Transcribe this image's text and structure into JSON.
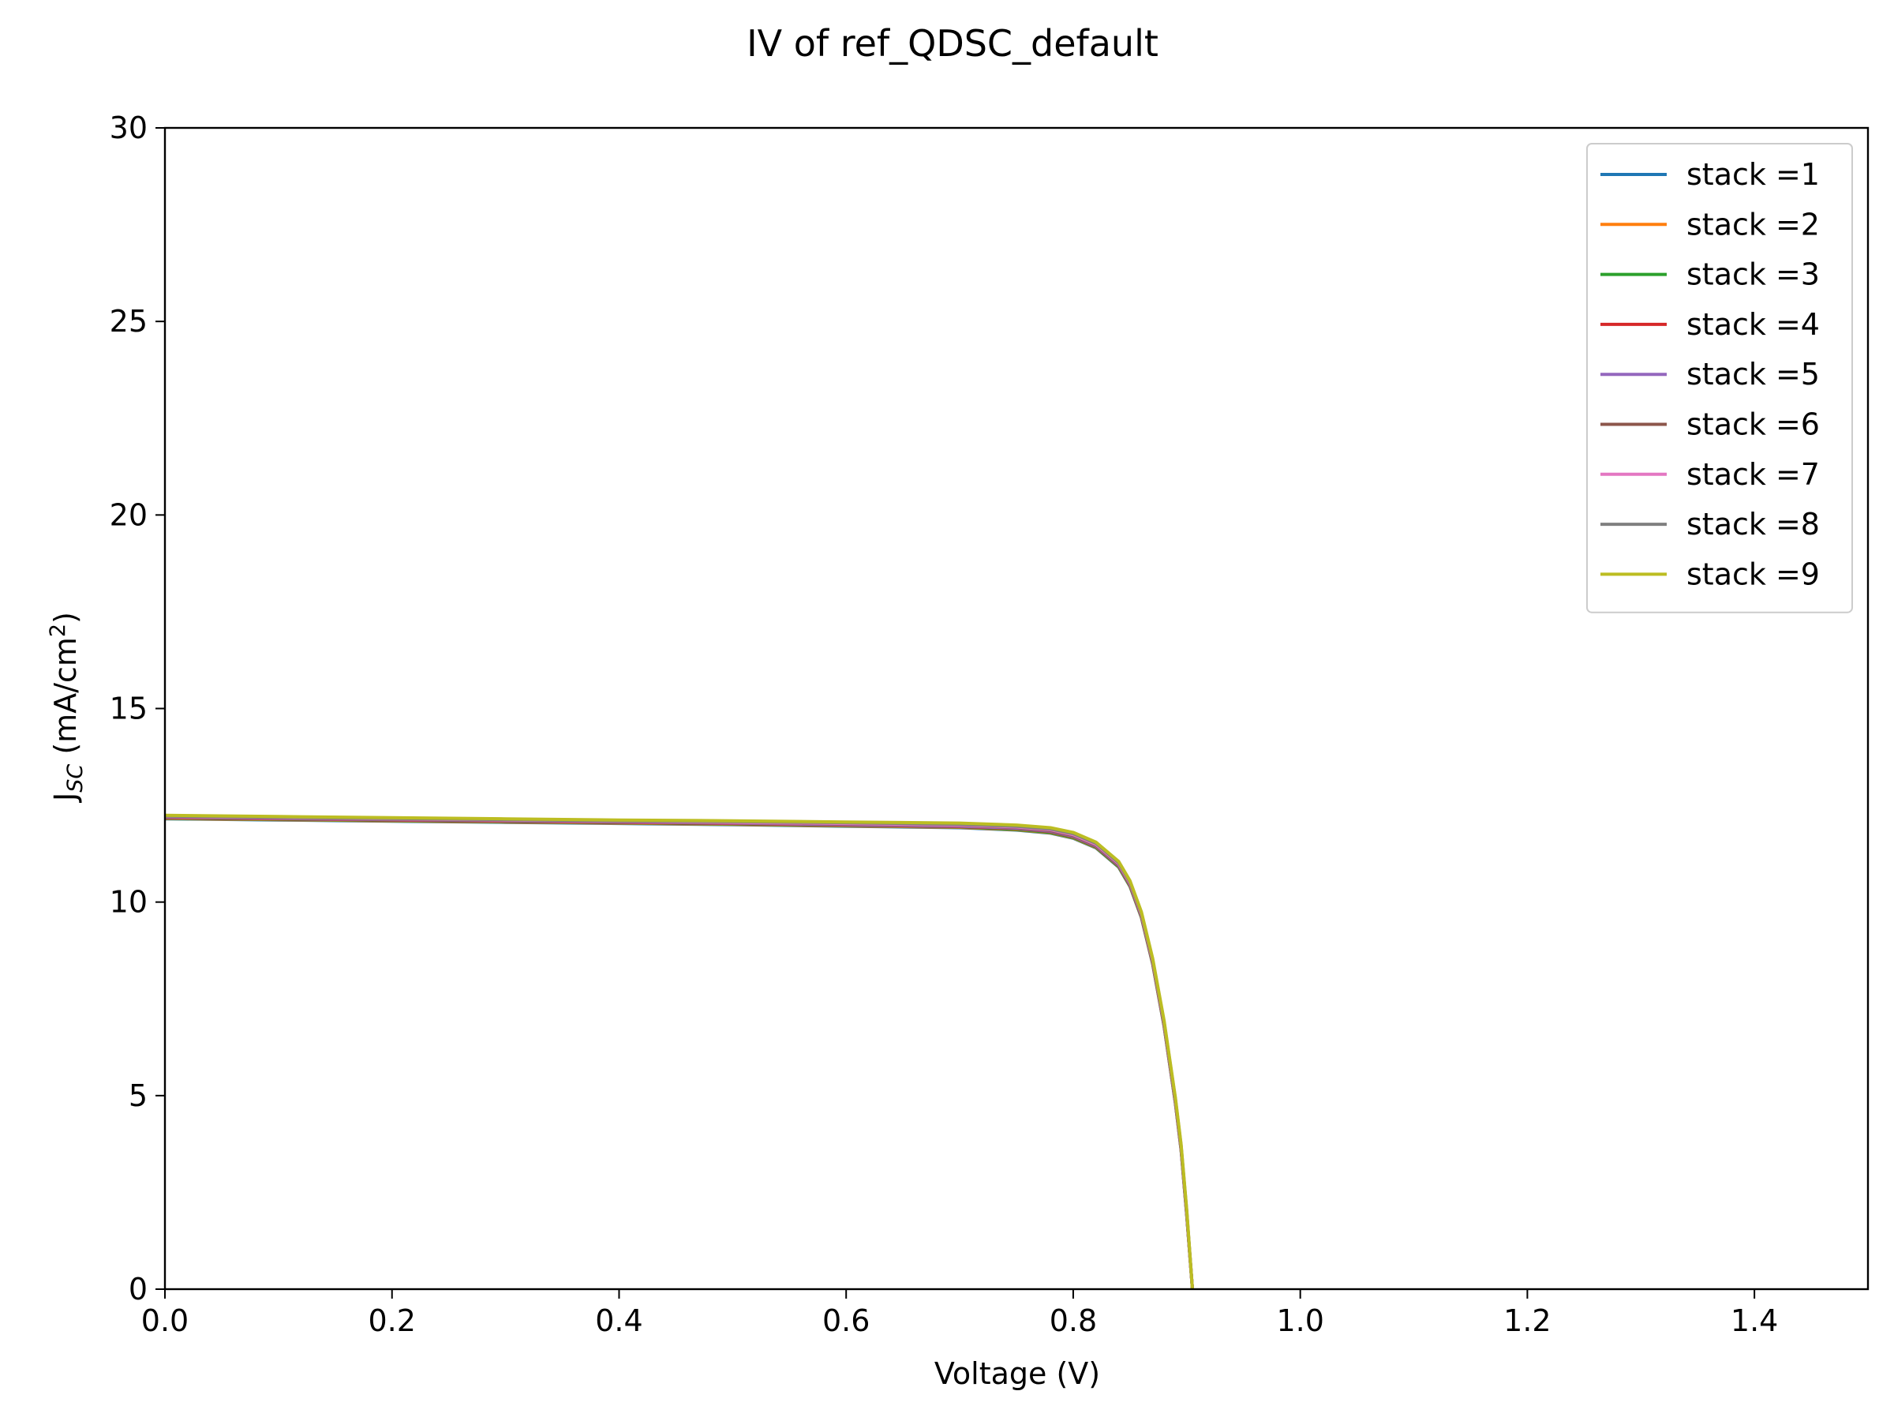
{
  "chart_data": {
    "type": "line",
    "title": "IV of ref_QDSC_default",
    "xlabel": "Voltage (V)",
    "ylabel": {
      "main": "J",
      "sub": "SC",
      "unit_prefix": " (mA/cm",
      "unit_sup": "2",
      "unit_suffix": ")"
    },
    "xlim": [
      0,
      1.5
    ],
    "ylim": [
      0,
      30
    ],
    "xticks": [
      0.0,
      0.2,
      0.4,
      0.6,
      0.8,
      1.0,
      1.2,
      1.4
    ],
    "xtick_labels": [
      "0.0",
      "0.2",
      "0.4",
      "0.6",
      "0.8",
      "1.0",
      "1.2",
      "1.4"
    ],
    "yticks": [
      0,
      5,
      10,
      15,
      20,
      25,
      30
    ],
    "ytick_labels": [
      "0",
      "5",
      "10",
      "15",
      "20",
      "25",
      "30"
    ],
    "grid": false,
    "legend_position": "top-right",
    "x": [
      0.0,
      0.1,
      0.2,
      0.3,
      0.4,
      0.5,
      0.6,
      0.7,
      0.75,
      0.78,
      0.8,
      0.82,
      0.84,
      0.85,
      0.86,
      0.87,
      0.88,
      0.89,
      0.895,
      0.9,
      0.905
    ],
    "series": [
      {
        "name": "stack =1",
        "color": "#1f77b4",
        "values": [
          12.15,
          12.12,
          12.09,
          12.06,
          12.03,
          12.0,
          11.96,
          11.92,
          11.86,
          11.78,
          11.65,
          11.4,
          10.9,
          10.4,
          9.6,
          8.4,
          6.8,
          4.8,
          3.6,
          1.9,
          0.0
        ]
      },
      {
        "name": "stack =2",
        "color": "#ff7f0e",
        "values": [
          12.16,
          12.13,
          12.1,
          12.07,
          12.04,
          12.01,
          11.97,
          11.93,
          11.87,
          11.79,
          11.66,
          11.41,
          10.91,
          10.41,
          9.61,
          8.41,
          6.81,
          4.81,
          3.61,
          1.91,
          0.0
        ]
      },
      {
        "name": "stack =3",
        "color": "#2ca02c",
        "values": [
          12.17,
          12.14,
          12.11,
          12.08,
          12.05,
          12.02,
          11.98,
          11.94,
          11.88,
          11.8,
          11.67,
          11.42,
          10.92,
          10.42,
          9.62,
          8.42,
          6.82,
          4.82,
          3.62,
          1.92,
          0.0
        ]
      },
      {
        "name": "stack =4",
        "color": "#d62728",
        "values": [
          12.18,
          12.15,
          12.12,
          12.09,
          12.06,
          12.03,
          11.99,
          11.95,
          11.9,
          11.82,
          11.69,
          11.44,
          10.94,
          10.44,
          9.64,
          8.44,
          6.84,
          4.84,
          3.64,
          1.94,
          0.0
        ]
      },
      {
        "name": "stack =5",
        "color": "#9467bd",
        "values": [
          12.19,
          12.16,
          12.13,
          12.1,
          12.07,
          12.04,
          12.0,
          11.96,
          11.91,
          11.83,
          11.7,
          11.45,
          10.95,
          10.45,
          9.65,
          8.45,
          6.85,
          4.85,
          3.65,
          1.95,
          0.0
        ]
      },
      {
        "name": "stack =6",
        "color": "#8c564b",
        "values": [
          12.2,
          12.17,
          12.14,
          12.11,
          12.08,
          12.05,
          12.02,
          11.98,
          11.93,
          11.85,
          11.72,
          11.47,
          10.97,
          10.47,
          9.67,
          8.47,
          6.87,
          4.87,
          3.67,
          1.97,
          0.0
        ]
      },
      {
        "name": "stack =7",
        "color": "#e377c2",
        "values": [
          12.21,
          12.18,
          12.15,
          12.12,
          12.09,
          12.06,
          12.03,
          11.99,
          11.94,
          11.87,
          11.74,
          11.49,
          10.99,
          10.49,
          9.69,
          8.49,
          6.89,
          4.89,
          3.69,
          1.99,
          0.0
        ]
      },
      {
        "name": "stack =8",
        "color": "#7f7f7f",
        "values": [
          12.22,
          12.19,
          12.16,
          12.13,
          12.1,
          12.08,
          12.05,
          12.01,
          11.96,
          11.89,
          11.77,
          11.52,
          11.02,
          10.52,
          9.72,
          8.52,
          6.92,
          4.92,
          3.72,
          2.02,
          0.0
        ]
      },
      {
        "name": "stack =9",
        "color": "#bcbd22",
        "values": [
          12.24,
          12.21,
          12.18,
          12.15,
          12.12,
          12.1,
          12.07,
          12.04,
          11.99,
          11.92,
          11.8,
          11.55,
          11.05,
          10.55,
          9.75,
          8.55,
          6.95,
          4.95,
          3.75,
          2.05,
          0.0
        ]
      }
    ]
  }
}
